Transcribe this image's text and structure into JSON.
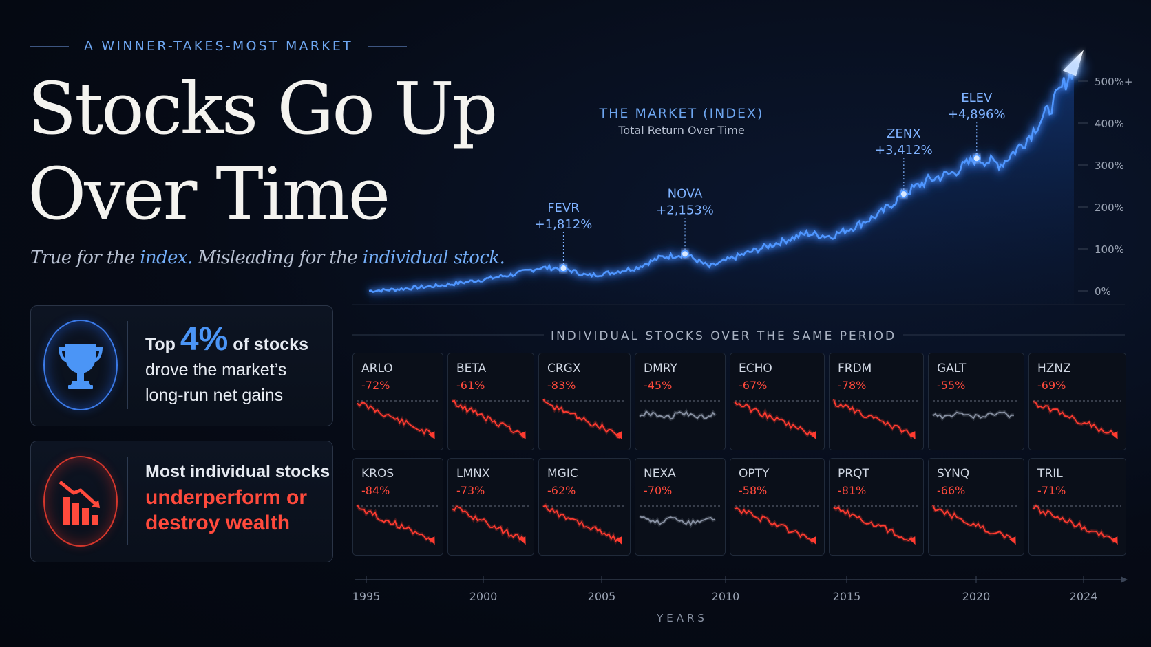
{
  "header": {
    "kicker": "A WINNER-TAKES-MOST MARKET",
    "title_line1": "Stocks Go Up",
    "title_line2": "Over Time",
    "subtitle": {
      "part1": "True for the ",
      "index": "index.",
      "part2": " Misleading for the ",
      "individual": "individual stock."
    }
  },
  "cards": {
    "top": {
      "icon": "trophy-icon",
      "pre": "Top ",
      "pct": "4%",
      "post": " of stocks",
      "line2": "drove the market’s",
      "line3": "long-run net gains"
    },
    "bottom": {
      "icon": "declining-bars-icon",
      "line1": "Most individual stocks",
      "line2": "underperform or",
      "line3": "destroy wealth"
    }
  },
  "colors": {
    "index_line": "#3f8cff",
    "loss": "#ff3b30",
    "flat": "#8a93a5",
    "accent": "#4b95f6"
  },
  "chart_data": [
    {
      "type": "line",
      "title": "THE MARKET (INDEX)",
      "subtitle": "Total Return Over Time",
      "x": [
        1995,
        1996,
        1997,
        1998,
        1999,
        2000,
        2001,
        2002,
        2003,
        2004,
        2005,
        2006,
        2007,
        2008,
        2009,
        2010,
        2011,
        2012,
        2013,
        2014,
        2015,
        2016,
        2017,
        2018,
        2019,
        2020,
        2021,
        2022,
        2023,
        2024
      ],
      "series": [
        {
          "values": [
            0,
            3,
            8,
            13,
            21,
            30,
            40,
            55,
            54,
            36,
            44,
            55,
            80,
            88,
            57,
            79,
            99,
            118,
            137,
            130,
            154,
            183,
            231,
            264,
            281,
            316,
            302,
            358,
            434,
            532
          ]
        }
      ],
      "y_ticks": [
        "0%",
        "100%",
        "200%",
        "300%",
        "400%",
        "500%+"
      ],
      "ylim": [
        0,
        520
      ],
      "annotations": [
        {
          "label": "FEVR",
          "value": "+1,812%",
          "x": 2003
        },
        {
          "label": "NOVA",
          "value": "+2,153%",
          "x": 2008
        },
        {
          "label": "ZENX",
          "value": "+3,412%",
          "x": 2017
        },
        {
          "label": "ELEV",
          "value": "+4,896%",
          "x": 2020
        }
      ]
    },
    {
      "type": "line",
      "title": "INDIVIDUAL STOCKS OVER THE SAME PERIOD",
      "xlabel": "YEARS",
      "x_ticks": [
        "1995",
        "2000",
        "2005",
        "2010",
        "2015",
        "2020",
        "2024"
      ],
      "stocks": [
        {
          "ticker": "ARLO",
          "change": "-72%",
          "trend": "down"
        },
        {
          "ticker": "BETA",
          "change": "-61%",
          "trend": "down"
        },
        {
          "ticker": "CRGX",
          "change": "-83%",
          "trend": "down"
        },
        {
          "ticker": "DMRY",
          "change": "-45%",
          "trend": "flat"
        },
        {
          "ticker": "ECHO",
          "change": "-67%",
          "trend": "down"
        },
        {
          "ticker": "FRDM",
          "change": "-78%",
          "trend": "down"
        },
        {
          "ticker": "GALT",
          "change": "-55%",
          "trend": "flat"
        },
        {
          "ticker": "HZNZ",
          "change": "-69%",
          "trend": "down"
        },
        {
          "ticker": "KROS",
          "change": "-84%",
          "trend": "down"
        },
        {
          "ticker": "LMNX",
          "change": "-73%",
          "trend": "down"
        },
        {
          "ticker": "MGIC",
          "change": "-62%",
          "trend": "down"
        },
        {
          "ticker": "NEXA",
          "change": "-70%",
          "trend": "flat"
        },
        {
          "ticker": "OPTY",
          "change": "-58%",
          "trend": "down"
        },
        {
          "ticker": "PRQT",
          "change": "-81%",
          "trend": "down"
        },
        {
          "ticker": "SYNQ",
          "change": "-66%",
          "trend": "down"
        },
        {
          "ticker": "TRIL",
          "change": "-71%",
          "trend": "down"
        }
      ]
    }
  ]
}
